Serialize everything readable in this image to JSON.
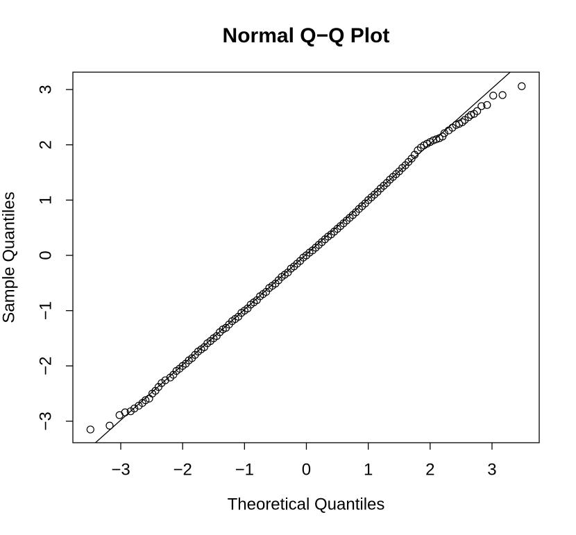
{
  "chart_data": {
    "type": "scatter",
    "title": "Normal Q−Q Plot",
    "x_label": "Theoretical Quantiles",
    "y_label": "Sample Quantiles",
    "xlim": [
      -3.774,
      3.763
    ],
    "ylim": [
      -3.389,
      3.314
    ],
    "xticks": [
      {
        "value": -3,
        "label": "−3"
      },
      {
        "value": -2,
        "label": "−2"
      },
      {
        "value": -1,
        "label": "−1"
      },
      0,
      1,
      2,
      3
    ],
    "yticks": [
      {
        "value": -3,
        "label": "−3"
      },
      {
        "value": -2,
        "label": "−2"
      },
      {
        "value": -1,
        "label": "−1"
      },
      0,
      1,
      2,
      3
    ],
    "color": "#000000",
    "line": {
      "intercept": 0.02,
      "slope": 1.0
    },
    "x": [
      -3.49,
      -3.18,
      -3.02,
      -2.93,
      -2.84,
      -2.78,
      -2.71,
      -2.65,
      -2.6,
      -2.54,
      -2.49,
      -2.44,
      -2.39,
      -2.34,
      -2.28,
      -2.2,
      -2.15,
      -2.1,
      -2.05,
      -2.0,
      -1.95,
      -1.9,
      -1.85,
      -1.8,
      -1.75,
      -1.7,
      -1.65,
      -1.6,
      -1.55,
      -1.5,
      -1.45,
      -1.4,
      -1.35,
      -1.3,
      -1.25,
      -1.2,
      -1.15,
      -1.1,
      -1.05,
      -1.0,
      -0.95,
      -0.9,
      -0.85,
      -0.8,
      -0.75,
      -0.7,
      -0.65,
      -0.6,
      -0.55,
      -0.5,
      -0.45,
      -0.4,
      -0.35,
      -0.3,
      -0.25,
      -0.2,
      -0.15,
      -0.1,
      -0.05,
      0.0,
      0.05,
      0.1,
      0.15,
      0.2,
      0.25,
      0.3,
      0.35,
      0.4,
      0.45,
      0.5,
      0.55,
      0.6,
      0.65,
      0.7,
      0.75,
      0.8,
      0.85,
      0.9,
      0.95,
      1.0,
      1.05,
      1.1,
      1.15,
      1.2,
      1.25,
      1.3,
      1.35,
      1.4,
      1.45,
      1.5,
      1.55,
      1.6,
      1.65,
      1.7,
      1.75,
      1.8,
      1.85,
      1.9,
      1.95,
      2.0,
      2.05,
      2.1,
      2.15,
      2.2,
      2.23,
      2.3,
      2.36,
      2.42,
      2.47,
      2.52,
      2.56,
      2.62,
      2.66,
      2.71,
      2.76,
      2.83,
      2.92,
      3.02,
      3.17,
      3.48
    ],
    "values": [
      -3.15,
      -3.08,
      -2.89,
      -2.84,
      -2.82,
      -2.77,
      -2.72,
      -2.67,
      -2.62,
      -2.59,
      -2.5,
      -2.45,
      -2.38,
      -2.31,
      -2.26,
      -2.21,
      -2.16,
      -2.09,
      -2.05,
      -2.0,
      -1.96,
      -1.9,
      -1.86,
      -1.8,
      -1.74,
      -1.7,
      -1.66,
      -1.59,
      -1.55,
      -1.5,
      -1.46,
      -1.39,
      -1.34,
      -1.31,
      -1.25,
      -1.19,
      -1.15,
      -1.11,
      -1.04,
      -1.0,
      -0.96,
      -0.89,
      -0.85,
      -0.81,
      -0.74,
      -0.7,
      -0.66,
      -0.59,
      -0.55,
      -0.51,
      -0.45,
      -0.39,
      -0.35,
      -0.31,
      -0.24,
      -0.2,
      -0.15,
      -0.1,
      -0.04,
      0.0,
      0.05,
      0.09,
      0.14,
      0.19,
      0.24,
      0.29,
      0.34,
      0.38,
      0.43,
      0.48,
      0.53,
      0.58,
      0.63,
      0.68,
      0.73,
      0.78,
      0.84,
      0.89,
      0.94,
      1.0,
      1.05,
      1.1,
      1.15,
      1.21,
      1.26,
      1.31,
      1.37,
      1.42,
      1.47,
      1.52,
      1.58,
      1.63,
      1.69,
      1.75,
      1.82,
      1.9,
      1.95,
      1.99,
      2.02,
      2.05,
      2.08,
      2.1,
      2.12,
      2.15,
      2.21,
      2.26,
      2.31,
      2.36,
      2.38,
      2.41,
      2.45,
      2.5,
      2.54,
      2.56,
      2.61,
      2.7,
      2.72,
      2.89,
      2.9,
      3.06
    ]
  }
}
